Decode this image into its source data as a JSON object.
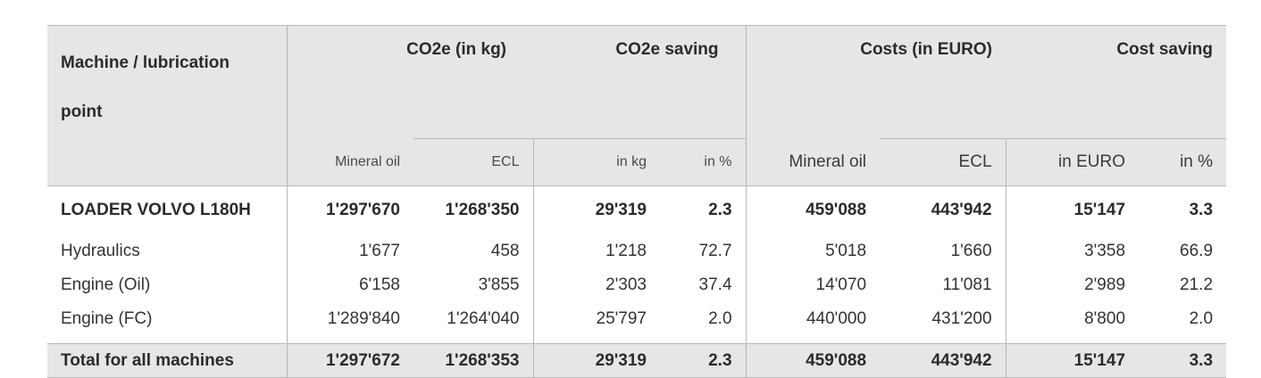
{
  "header": {
    "col_machine": "Machine / lubrication",
    "col_machine_2": "point",
    "co2e_kg": "CO2e (in kg)",
    "co2e_saving": "CO2e saving",
    "costs_euro": "Costs (in EURO)",
    "cost_saving": "Cost saving",
    "sub": [
      "Mineral oil",
      "ECL",
      "in kg",
      "in %",
      "Mineral oil",
      "ECL",
      "in EURO",
      "in %"
    ]
  },
  "rows": [
    {
      "label": "LOADER VOLVO L180H",
      "values": [
        "1'297'670",
        "1'268'350",
        "29'319",
        "2.3",
        "459'088",
        "443'942",
        "15'147",
        "3.3"
      ]
    },
    {
      "label": "Hydraulics",
      "values": [
        "1'677",
        "458",
        "1'218",
        "72.7",
        "5'018",
        "1'660",
        "3'358",
        "66.9"
      ]
    },
    {
      "label": "Engine (Oil)",
      "values": [
        "6'158",
        "3'855",
        "2'303",
        "37.4",
        "14'070",
        "11'081",
        "2'989",
        "21.2"
      ]
    },
    {
      "label": "Engine (FC)",
      "values": [
        "1'289'840",
        "1'264'040",
        "25'797",
        "2.0",
        "440'000",
        "431'200",
        "8'800",
        "2.0"
      ]
    }
  ],
  "total": {
    "label": "Total for all machines",
    "values": [
      "1'297'672",
      "1'268'353",
      "29'319",
      "2.3",
      "459'088",
      "443'942",
      "15'147",
      "3.3"
    ]
  }
}
